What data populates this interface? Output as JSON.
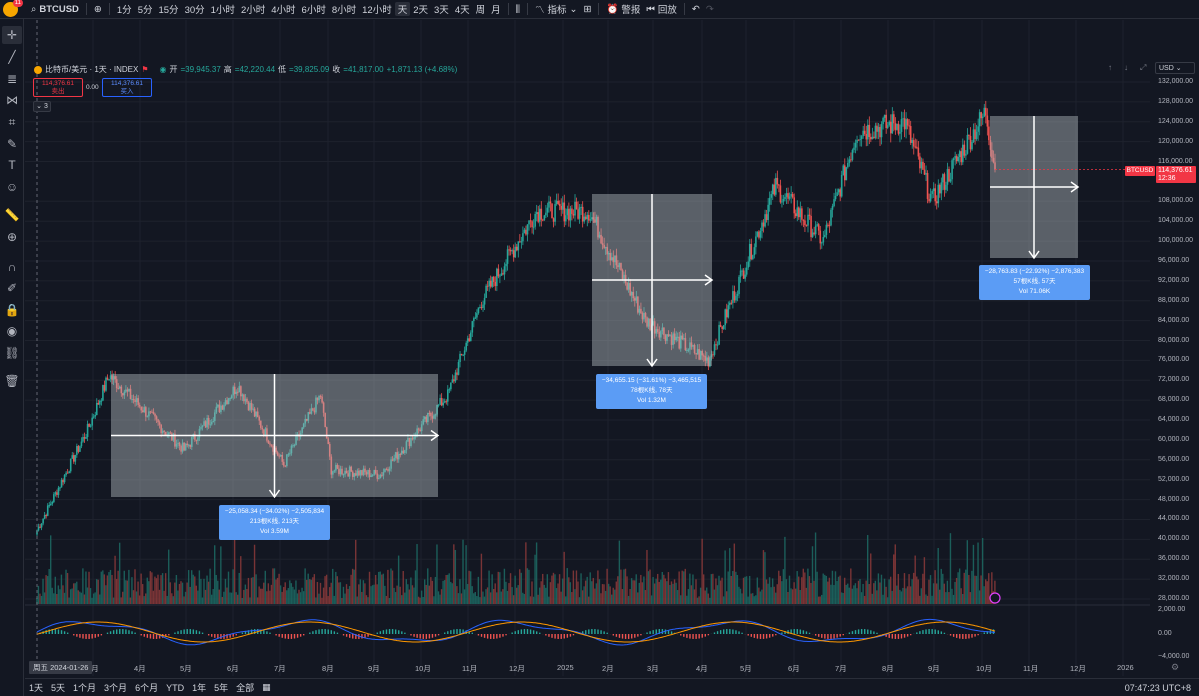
{
  "topbar": {
    "avatar_badge": "11",
    "symbol": "BTCUSD",
    "intervals": [
      "1分",
      "5分",
      "15分",
      "30分",
      "1小时",
      "2小时",
      "4小时",
      "6小时",
      "8小时",
      "12小时",
      "天",
      "2天",
      "3天",
      "4天",
      "周",
      "月"
    ],
    "active_interval": "天",
    "indicators": "指标",
    "alert": "警报",
    "replay": "回放"
  },
  "legend": {
    "title": "比特币/美元 · 1天 · INDEX",
    "open_label": "开",
    "open": "=39,945.37",
    "high_label": "高",
    "high": "=42,220.44",
    "low_label": "低",
    "low": "=39,825.09",
    "close_label": "收",
    "close": "=41,817.00",
    "change": "+1,871.13 (+4.68%)",
    "sell_price": "114,376.61",
    "sell_label": "卖出",
    "spread": "0.00",
    "buy_price": "114,376.61",
    "buy_label": "买入",
    "collapse": "3"
  },
  "measurements": [
    {
      "line1": "−25,058.34 (−34.02%) −2,505,834",
      "line2": "213根K线, 213天",
      "line3": "Vol 3.59M"
    },
    {
      "line1": "−34,655.15 (−31.61%) −3,465,515",
      "line2": "78根K线, 78天",
      "line3": "Vol 1.32M"
    },
    {
      "line1": "−28,763.83 (−22.92%) −2,876,383",
      "line2": "57根K线, 57天",
      "line3": "Vol 71.06K"
    }
  ],
  "price_axis": {
    "currency": "USD",
    "labels": [
      "132,000.00",
      "128,000.00",
      "124,000.00",
      "120,000.00",
      "116,000.00",
      "108,000.00",
      "104,000.00",
      "100,000.00",
      "96,000.00",
      "92,000.00",
      "88,000.00",
      "84,000.00",
      "80,000.00",
      "76,000.00",
      "72,000.00",
      "68,000.00",
      "64,000.00",
      "60,000.00",
      "56,000.00",
      "52,000.00",
      "48,000.00",
      "44,000.00",
      "40,000.00",
      "36,000.00",
      "32,000.00",
      "28,000.00"
    ],
    "symbol_tag": "BTCUSD",
    "last_price": "114,376.61",
    "countdown": "12:36",
    "osc_labels": [
      "2,000.00",
      "0.00",
      "−4,000.00"
    ]
  },
  "time_axis": {
    "date_chip": "周五 2024-01-26",
    "labels": [
      "3月",
      "4月",
      "5月",
      "6月",
      "7月",
      "8月",
      "9月",
      "10月",
      "11月",
      "12月",
      "2025",
      "2月",
      "3月",
      "4月",
      "5月",
      "6月",
      "7月",
      "8月",
      "9月",
      "10月",
      "11月",
      "12月",
      "2026"
    ]
  },
  "bottombar": {
    "ranges": [
      "1天",
      "5天",
      "1个月",
      "3个月",
      "6个月",
      "YTD",
      "1年",
      "5年",
      "全部"
    ],
    "clock": "07:47:23 UTC+8"
  },
  "colors": {
    "up": "#26a69a",
    "down": "#ef5350",
    "box": "#b2bbbf",
    "measure": "#5b9cf5"
  },
  "chart_data": {
    "type": "candlestick",
    "series_anchors": [
      {
        "date": "2024-01-26",
        "close": 41817
      },
      {
        "date": "2024-02-28",
        "close": 62000
      },
      {
        "date": "2024-03-13",
        "close": 73000
      },
      {
        "date": "2024-05-01",
        "close": 58000
      },
      {
        "date": "2024-06-05",
        "close": 71000
      },
      {
        "date": "2024-07-05",
        "close": 55000
      },
      {
        "date": "2024-07-29",
        "close": 69000
      },
      {
        "date": "2024-08-05",
        "close": 54000
      },
      {
        "date": "2024-09-06",
        "close": 53000
      },
      {
        "date": "2024-10-20",
        "close": 69000
      },
      {
        "date": "2024-11-11",
        "close": 88000
      },
      {
        "date": "2024-12-17",
        "close": 106000
      },
      {
        "date": "2025-01-20",
        "close": 106000
      },
      {
        "date": "2025-02-26",
        "close": 84000
      },
      {
        "date": "2025-04-08",
        "close": 76000
      },
      {
        "date": "2025-05-22",
        "close": 111000
      },
      {
        "date": "2025-06-22",
        "close": 100000
      },
      {
        "date": "2025-07-14",
        "close": 122000
      },
      {
        "date": "2025-08-14",
        "close": 124000
      },
      {
        "date": "2025-09-01",
        "close": 108000
      },
      {
        "date": "2025-10-06",
        "close": 126000
      },
      {
        "date": "2025-10-12",
        "close": 114376.61
      }
    ],
    "ylim": [
      26000,
      134000
    ]
  }
}
